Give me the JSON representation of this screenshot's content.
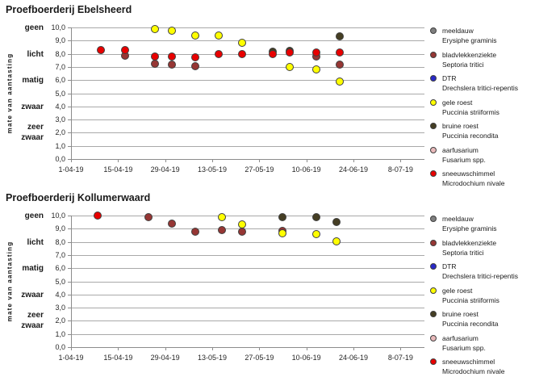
{
  "legend": {
    "marker_outline": "#3f3f3f",
    "items": [
      {
        "name": "meeldauw",
        "latin": "Erysiphe graminis",
        "color": "#7f7f7f"
      },
      {
        "name": "bladvlekkenziekte",
        "latin": "Septoria tritici",
        "color": "#963634"
      },
      {
        "name": "DTR",
        "latin": "Drechslera tritici-repentis",
        "color": "#2929c8"
      },
      {
        "name": "gele roest",
        "latin": "Puccinia striiformis",
        "color": "#ffff00"
      },
      {
        "name": "bruine roest",
        "latin": "Puccinia recondita",
        "color": "#453e23"
      },
      {
        "name": "aarfusarium",
        "latin": "Fusarium spp.",
        "color": "#e9b9ba"
      },
      {
        "name": "sneeuwschimmel",
        "latin": "Microdochium nivale",
        "color": "#e80000"
      }
    ]
  },
  "axes": {
    "ylabel": "mate van aantasting",
    "ylim": [
      0,
      10
    ],
    "y_numeric_labels": [
      "0,0",
      "1,0",
      "2,0",
      "3,0",
      "4,0",
      "5,0",
      "6,0",
      "7,0",
      "8,0",
      "9,0",
      "10,0"
    ],
    "y_category_labels": [
      {
        "label": "geen",
        "value": 10
      },
      {
        "label": "licht",
        "value": 8
      },
      {
        "label": "matig",
        "value": 6
      },
      {
        "label": "zwaar",
        "value": 4
      },
      {
        "label": "zeer zwaar",
        "value": 2
      }
    ],
    "x_ticks": [
      {
        "label": "1-04-19",
        "day": 0
      },
      {
        "label": "15-04-19",
        "day": 14
      },
      {
        "label": "29-04-19",
        "day": 28
      },
      {
        "label": "13-05-19",
        "day": 42
      },
      {
        "label": "27-05-19",
        "day": 56
      },
      {
        "label": "10-06-19",
        "day": 70
      },
      {
        "label": "24-06-19",
        "day": 84
      },
      {
        "label": "8-07-19",
        "day": 98
      }
    ]
  },
  "chart_data": [
    {
      "type": "scatter",
      "title": "Proefboerderij Ebelsheerd",
      "xlabel": "",
      "ylabel": "mate van aantasting",
      "ylim": [
        0,
        10
      ],
      "grid": true,
      "legend_position": "right",
      "series": [
        {
          "name": "bladvlekkenziekte",
          "points": [
            {
              "date": "17-04-19",
              "day": 16,
              "value": 7.85
            },
            {
              "date": "26-04-19",
              "day": 25,
              "value": 7.25
            },
            {
              "date": "1-05-19",
              "day": 30,
              "value": 7.15
            },
            {
              "date": "8-05-19",
              "day": 37,
              "value": 7.05
            },
            {
              "date": "13-06-19",
              "day": 73,
              "value": 7.8
            },
            {
              "date": "20-06-19",
              "day": 80,
              "value": 7.2
            }
          ]
        },
        {
          "name": "bruine roest",
          "points": [
            {
              "date": "31-05-19",
              "day": 60,
              "value": 8.15
            },
            {
              "date": "5-06-19",
              "day": 65,
              "value": 8.25
            },
            {
              "date": "20-06-19",
              "day": 80,
              "value": 9.35
            }
          ]
        },
        {
          "name": "gele roest",
          "points": [
            {
              "date": "26-04-19",
              "day": 25,
              "value": 9.9
            },
            {
              "date": "1-05-19",
              "day": 30,
              "value": 9.75
            },
            {
              "date": "8-05-19",
              "day": 37,
              "value": 9.4
            },
            {
              "date": "15-05-19",
              "day": 44,
              "value": 9.4
            },
            {
              "date": "22-05-19",
              "day": 51,
              "value": 8.85
            },
            {
              "date": "5-06-19",
              "day": 65,
              "value": 7.0
            },
            {
              "date": "13-06-19",
              "day": 73,
              "value": 6.8
            },
            {
              "date": "20-06-19",
              "day": 80,
              "value": 5.9
            }
          ]
        },
        {
          "name": "sneeuwschimmel",
          "points": [
            {
              "date": "10-04-19",
              "day": 9,
              "value": 8.3
            },
            {
              "date": "17-04-19",
              "day": 16,
              "value": 8.3
            },
            {
              "date": "26-04-19",
              "day": 25,
              "value": 7.8
            },
            {
              "date": "1-05-19",
              "day": 30,
              "value": 7.8
            },
            {
              "date": "8-05-19",
              "day": 37,
              "value": 7.7
            },
            {
              "date": "15-05-19",
              "day": 44,
              "value": 8.0
            },
            {
              "date": "22-05-19",
              "day": 51,
              "value": 7.95
            },
            {
              "date": "31-05-19",
              "day": 60,
              "value": 8.0
            },
            {
              "date": "5-06-19",
              "day": 65,
              "value": 8.1
            },
            {
              "date": "13-06-19",
              "day": 73,
              "value": 8.1
            },
            {
              "date": "20-06-19",
              "day": 80,
              "value": 8.1
            }
          ]
        }
      ]
    },
    {
      "type": "scatter",
      "title": "Proefboerderij Kollumerwaard",
      "xlabel": "",
      "ylabel": "mate van aantasting",
      "ylim": [
        0,
        10
      ],
      "grid": true,
      "legend_position": "right",
      "series": [
        {
          "name": "bladvlekkenziekte",
          "points": [
            {
              "date": "24-04-19",
              "day": 23,
              "value": 9.9
            },
            {
              "date": "1-05-19",
              "day": 30,
              "value": 9.4
            },
            {
              "date": "8-05-19",
              "day": 37,
              "value": 8.8
            },
            {
              "date": "16-05-19",
              "day": 45,
              "value": 8.9
            },
            {
              "date": "22-05-19",
              "day": 51,
              "value": 8.8
            },
            {
              "date": "3-06-19",
              "day": 63,
              "value": 8.85
            }
          ]
        },
        {
          "name": "bruine roest",
          "points": [
            {
              "date": "3-06-19",
              "day": 63,
              "value": 9.9
            },
            {
              "date": "13-06-19",
              "day": 73,
              "value": 9.85
            },
            {
              "date": "19-06-19",
              "day": 79,
              "value": 9.5
            }
          ]
        },
        {
          "name": "gele roest",
          "points": [
            {
              "date": "16-05-19",
              "day": 45,
              "value": 9.9
            },
            {
              "date": "22-05-19",
              "day": 51,
              "value": 9.35
            },
            {
              "date": "3-06-19",
              "day": 63,
              "value": 8.65
            },
            {
              "date": "13-06-19",
              "day": 73,
              "value": 8.6
            },
            {
              "date": "19-06-19",
              "day": 79,
              "value": 8.05
            }
          ]
        },
        {
          "name": "sneeuwschimmel",
          "points": [
            {
              "date": "9-04-19",
              "day": 8,
              "value": 10.0
            }
          ]
        }
      ]
    }
  ]
}
